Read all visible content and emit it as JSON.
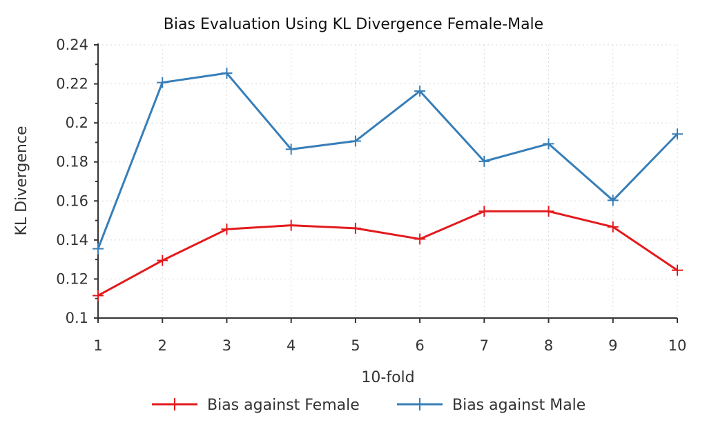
{
  "chart_data": {
    "type": "line",
    "title": "Bias Evaluation Using KL Divergence Female-Male",
    "xlabel": "10-fold",
    "ylabel": "KL Divergence",
    "x": [
      1,
      2,
      3,
      4,
      5,
      6,
      7,
      8,
      9,
      10
    ],
    "x_tick_labels": [
      "1",
      "2",
      "3",
      "4",
      "5",
      "6",
      "7",
      "8",
      "9",
      "10"
    ],
    "xlim": [
      1,
      10
    ],
    "ylim": [
      0.1,
      0.24
    ],
    "y_ticks": [
      0.1,
      0.12,
      0.14,
      0.16,
      0.18,
      0.2,
      0.22,
      0.24
    ],
    "y_tick_labels": [
      "0.1",
      "0.12",
      "0.14",
      "0.16",
      "0.18",
      "0.2",
      "0.22",
      "0.24"
    ],
    "grid": true,
    "legend_position": "bottom",
    "series": [
      {
        "name": "Bias against Female",
        "color": "#e31a1c",
        "marker": "plus",
        "values": [
          0.1115,
          0.1295,
          0.1455,
          0.1475,
          0.146,
          0.1405,
          0.1547,
          0.1547,
          0.1467,
          0.1245
        ]
      },
      {
        "name": "Bias against Male",
        "color": "#377eb8",
        "marker": "plus",
        "values": [
          0.1355,
          0.2207,
          0.2255,
          0.1865,
          0.1907,
          0.2163,
          0.1803,
          0.1893,
          0.1603,
          0.1943
        ]
      }
    ]
  }
}
